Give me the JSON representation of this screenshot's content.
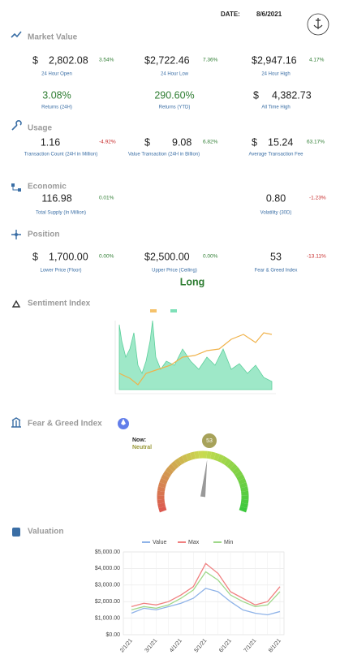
{
  "header": {
    "date_label": "DATE:",
    "date": "8/6/2021"
  },
  "market_value": {
    "title": "Market Value",
    "items": [
      {
        "prefix": "$",
        "value": "2,802.08",
        "change": "3.54%",
        "label": "24 Hour Open"
      },
      {
        "value": "$2,722.46",
        "change": "7.36%",
        "label": "24 Hour Low"
      },
      {
        "value": "$2,947.16",
        "change": "4.17%",
        "label": "24 Hour High"
      },
      {
        "value": "3.08%",
        "label": "Returns (24H)"
      },
      {
        "value": "290.60%",
        "label": "Returns (YTD)"
      },
      {
        "prefix": "$",
        "value": "4,382.73",
        "label": "All Time High"
      }
    ]
  },
  "usage": {
    "title": "Usage",
    "items": [
      {
        "value": "1.16",
        "change": "-4.92%",
        "label": "Transaction Count (24H in Million)"
      },
      {
        "prefix": "$",
        "value": "9.08",
        "change": "6.82%",
        "label": "Value Transaction (24H in Billion)"
      },
      {
        "prefix": "$",
        "value": "15.24",
        "change": "63.17%",
        "label": "Average Transaction Fee"
      }
    ]
  },
  "economic": {
    "title": "Economic",
    "items": [
      {
        "value": "116.98",
        "change": "0.01%",
        "label": "Total Supply (In Million)"
      },
      {
        "value": "0.80",
        "change": "-1.23%",
        "label": "Volatility (30D)"
      }
    ]
  },
  "position": {
    "title": "Position",
    "items": [
      {
        "prefix": "$",
        "value": "1,700.00",
        "change": "0.00%",
        "label": "Lower Price (Floor)"
      },
      {
        "value": "$2,500.00",
        "change": "0.00%",
        "label": "Upper Price (Ceiling)"
      },
      {
        "value": "53",
        "change": "-13.11%",
        "label": "Fear & Greed Index"
      }
    ],
    "signal": "Long"
  },
  "sentiment_index": {
    "title": "Sentiment Index"
  },
  "fear_greed": {
    "title": "Fear & Greed Index",
    "now_label": "Now:",
    "status": "Neutral",
    "value": 53,
    "scale": [
      0,
      100
    ]
  },
  "valuation": {
    "title": "Valuation",
    "chart": {
      "type": "line",
      "categories": [
        "2/1/21",
        null,
        "3/1/21",
        null,
        "4/1/21",
        null,
        "5/1/21",
        null,
        "6/1/21",
        null,
        "7/1/21",
        null,
        "8/1/21"
      ],
      "series": [
        {
          "name": "Value",
          "color": "#8fb3e8",
          "values": [
            1300,
            1600,
            1500,
            1700,
            1900,
            2200,
            2800,
            2600,
            2000,
            1500,
            1300,
            1200,
            1400
          ]
        },
        {
          "name": "Max",
          "color": "#f08080",
          "values": [
            1700,
            1900,
            1800,
            2000,
            2400,
            2900,
            4300,
            3700,
            2600,
            2200,
            1800,
            2000,
            2900
          ]
        },
        {
          "name": "Min",
          "color": "#9fd88a",
          "values": [
            1500,
            1700,
            1600,
            1800,
            2200,
            2700,
            3800,
            3300,
            2400,
            2000,
            1700,
            1800,
            2600
          ]
        }
      ],
      "ylim": [
        0,
        5000
      ],
      "yticks": [
        {
          "value": 0,
          "label": "$0.00"
        },
        {
          "value": 1000,
          "label": "$1,000.00"
        },
        {
          "value": 2000,
          "label": "$2,000.00"
        },
        {
          "value": 3000,
          "label": "$3,000.00"
        },
        {
          "value": 4000,
          "label": "$4,000.00"
        },
        {
          "value": 5000,
          "label": "$5,000.00"
        }
      ],
      "grid": true
    }
  }
}
